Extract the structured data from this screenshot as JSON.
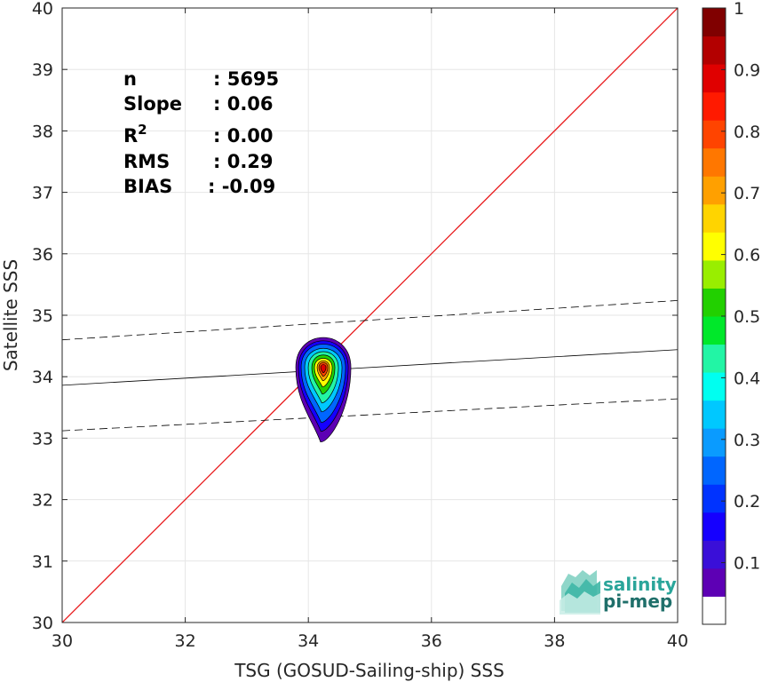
{
  "chart_data": {
    "type": "scatter",
    "subtype": "density-contour",
    "xlabel": "TSG (GOSUD-Sailing-ship) SSS",
    "ylabel": "Satellite SSS",
    "xlim": [
      30,
      40
    ],
    "ylim": [
      30,
      40
    ],
    "xticks": [
      "30",
      "32",
      "34",
      "36",
      "38",
      "40"
    ],
    "yticks": [
      "30",
      "31",
      "32",
      "33",
      "34",
      "35",
      "36",
      "37",
      "38",
      "39",
      "40"
    ],
    "grid": true,
    "stats": [
      {
        "label": "n",
        "value": ": 5695"
      },
      {
        "label": "Slope",
        "value": ": 0.06"
      },
      {
        "label": "R",
        "sup": "2",
        "value": ": 0.00"
      },
      {
        "label": "RMS",
        "value": ": 0.29"
      },
      {
        "label": "BIAS",
        "value": ": -0.09"
      }
    ],
    "lines": [
      {
        "kind": "identity",
        "color": "#e8191b",
        "x": [
          30,
          40
        ],
        "y": [
          30,
          40
        ]
      },
      {
        "kind": "fit",
        "color": "#000000",
        "x": [
          30,
          40
        ],
        "y": [
          33.86,
          34.44
        ]
      },
      {
        "kind": "fit-upper",
        "color": "#000000",
        "dashed": true,
        "x": [
          30,
          40
        ],
        "y": [
          34.6,
          35.24
        ]
      },
      {
        "kind": "fit-lower",
        "color": "#000000",
        "dashed": true,
        "x": [
          30,
          40
        ],
        "y": [
          33.12,
          33.64
        ]
      }
    ],
    "density_peak": {
      "x": 34.2,
      "y": 34.15
    },
    "colorbar": {
      "ticks": [
        "0.1",
        "0.2",
        "0.3",
        "0.4",
        "0.5",
        "0.6",
        "0.7",
        "0.8",
        "0.9",
        "1"
      ],
      "range": [
        0,
        1
      ],
      "colors": [
        "#ffffff",
        "#5d00b4",
        "#3a0fd8",
        "#1500ff",
        "#0033ff",
        "#0066ff",
        "#0a9bff",
        "#00c8ff",
        "#00fff0",
        "#22f5a5",
        "#00e82a",
        "#22d000",
        "#99ee00",
        "#ffff00",
        "#ffd400",
        "#ffa000",
        "#ff7700",
        "#ff4400",
        "#ff1a00",
        "#e00000",
        "#b30000",
        "#800000"
      ]
    }
  },
  "logo": {
    "line1": "salinity",
    "line2": "pi-mep"
  }
}
